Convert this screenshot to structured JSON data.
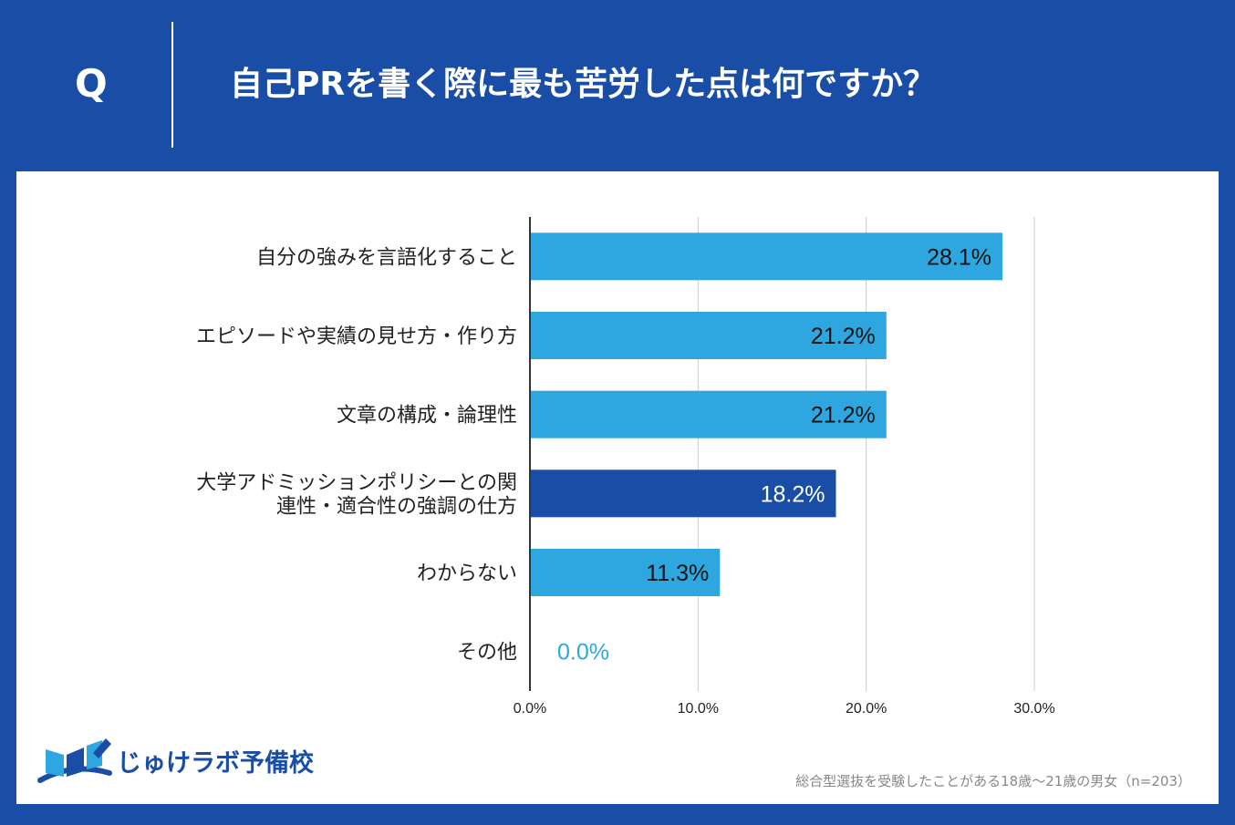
{
  "header": {
    "q_letter": "Q",
    "question": "自己PRを書く際に最も苦労した点は何ですか？"
  },
  "colors": {
    "background": "#1a4ea6",
    "bar": "#2ea6e0",
    "bar_highlight": "#1a4ea6",
    "grid": "#cccccc",
    "axis": "#333333"
  },
  "chart_data": {
    "type": "bar",
    "orientation": "horizontal",
    "categories": [
      [
        "自分の強みを言語化すること"
      ],
      [
        "エピソードや実績の見せ方・作り方"
      ],
      [
        "文章の構成・論理性"
      ],
      [
        "大学アドミッションポリシーとの関",
        "連性・適合性の強調の仕方"
      ],
      [
        "わからない"
      ],
      [
        "その他"
      ]
    ],
    "values": [
      28.1,
      21.2,
      21.2,
      18.2,
      11.3,
      0.0
    ],
    "value_labels": [
      "28.1%",
      "21.2%",
      "21.2%",
      "18.2%",
      "11.3%",
      "0.0%"
    ],
    "highlight_index": 3,
    "xlim": [
      0,
      30
    ],
    "xticks": [
      0,
      10,
      20,
      30
    ],
    "xtick_labels": [
      "0.0%",
      "10.0%",
      "20.0%",
      "30.0%"
    ],
    "grid": true
  },
  "footer": {
    "logo_text": "じゅけラボ予備校",
    "note": "総合型選抜を受験したことがある18歳～21歳の男女（n=203）"
  }
}
